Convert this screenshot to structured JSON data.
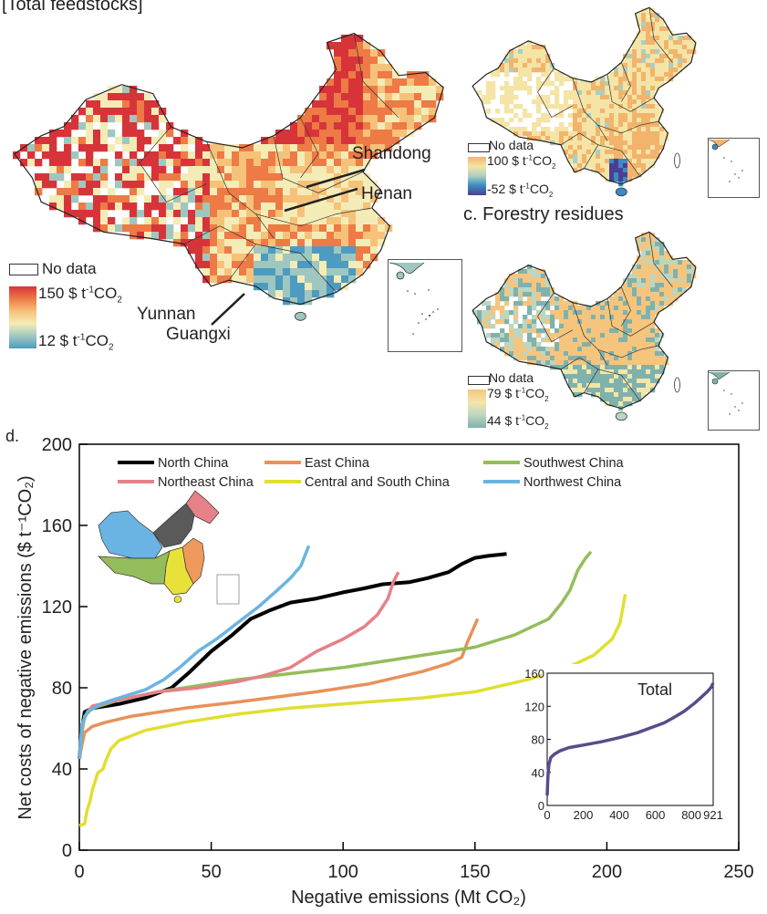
{
  "panel_a": {
    "title": "[Total feedstocks]",
    "legend": {
      "nodata_label": "No data",
      "max_label": "150 $ t",
      "max_sup": "-1",
      "max_unit": "CO",
      "max_sub": "2",
      "min_label": "12 $ t",
      "min_sup": "-1",
      "min_unit": "CO",
      "min_sub": "2",
      "colors": [
        "#d7343a",
        "#ee7a45",
        "#f6c27a",
        "#f4ecb6",
        "#9fc7bf",
        "#4d9bc1"
      ]
    },
    "annotations": [
      "Shandong",
      "Henan",
      "Yunnan",
      "Guangxi"
    ]
  },
  "panel_b": {
    "legend": {
      "nodata_label": "No data",
      "max_label": "100 $ t",
      "max_sup": "-1",
      "max_unit": "CO",
      "max_sub": "2",
      "min_label": "-52 $ t",
      "min_sup": "-1",
      "min_unit": "CO",
      "min_sub": "2",
      "colors": [
        "#f2b46c",
        "#f4e4a6",
        "#a9cfc4",
        "#3c8ac0",
        "#4b3f95"
      ]
    }
  },
  "panel_c": {
    "title": "c. Forestry residues",
    "legend": {
      "nodata_label": "No data",
      "max_label": "79 $ t",
      "max_sup": "-1",
      "max_unit": "CO",
      "max_sub": "2",
      "min_label": "44 $ t",
      "min_sup": "-1",
      "min_unit": "CO",
      "min_sub": "2",
      "colors": [
        "#f5c57d",
        "#f2e6a8",
        "#bcd6c1",
        "#80b2ad"
      ]
    }
  },
  "chart_data": [
    {
      "type": "line",
      "panel_label": "d.",
      "title": "",
      "xlabel": "Negative emissions (Mt CO₂)",
      "ylabel": "Net costs of negative emissions ($ t⁻¹CO₂)",
      "xlim": [
        0,
        250
      ],
      "ylim": [
        0,
        200
      ],
      "xticks": [
        0,
        50,
        100,
        150,
        200,
        250
      ],
      "yticks": [
        0,
        40,
        80,
        120,
        160,
        200
      ],
      "grid": false,
      "legend_position": "top",
      "series": [
        {
          "name": "North China",
          "color": "#000000",
          "x": [
            0,
            1,
            2,
            5,
            15,
            25,
            35,
            42,
            50,
            58,
            65,
            72,
            80,
            90,
            100,
            108,
            115,
            125,
            132,
            140,
            145,
            150,
            155,
            162
          ],
          "y": [
            45,
            60,
            68,
            70,
            72,
            75,
            80,
            88,
            98,
            106,
            114,
            118,
            122,
            124,
            127,
            129,
            131,
            132,
            134,
            137,
            141,
            144,
            145,
            146
          ]
        },
        {
          "name": "East China",
          "color": "#e8915a",
          "x": [
            0,
            1,
            2,
            5,
            10,
            20,
            40,
            60,
            90,
            110,
            130,
            140,
            145,
            147,
            149,
            151
          ],
          "y": [
            45,
            52,
            58,
            61,
            63,
            66,
            70,
            73,
            78,
            82,
            88,
            92,
            95,
            102,
            108,
            114
          ]
        },
        {
          "name": "Southwest China",
          "color": "#93bd5a",
          "x": [
            0,
            1,
            2,
            5,
            15,
            30,
            60,
            100,
            130,
            150,
            165,
            178,
            183,
            186,
            189,
            192,
            194
          ],
          "y": [
            45,
            58,
            66,
            70,
            74,
            78,
            84,
            90,
            96,
            100,
            106,
            114,
            122,
            128,
            138,
            144,
            147
          ]
        },
        {
          "name": "Northeast China",
          "color": "#e58188",
          "x": [
            0,
            1,
            3,
            5,
            15,
            30,
            45,
            60,
            70,
            80,
            90,
            100,
            108,
            113,
            117,
            119,
            121
          ],
          "y": [
            45,
            62,
            68,
            71,
            74,
            78,
            80,
            83,
            86,
            90,
            98,
            104,
            110,
            116,
            124,
            132,
            137
          ]
        },
        {
          "name": "Central and South China",
          "color": "#e0df2e",
          "x": [
            0,
            2,
            3,
            4,
            5,
            7,
            9,
            10,
            12,
            15,
            25,
            40,
            60,
            80,
            100,
            130,
            150,
            170,
            185,
            195,
            202,
            205,
            207
          ],
          "y": [
            12,
            13,
            20,
            24,
            30,
            38,
            40,
            44,
            50,
            54,
            59,
            63,
            67,
            70,
            72,
            75,
            78,
            84,
            90,
            96,
            104,
            112,
            126
          ]
        },
        {
          "name": "Northwest China",
          "color": "#6ab4e3",
          "x": [
            0,
            1,
            3,
            8,
            15,
            25,
            32,
            38,
            45,
            52,
            60,
            68,
            75,
            80,
            84,
            87
          ],
          "y": [
            45,
            62,
            68,
            72,
            75,
            79,
            84,
            90,
            98,
            104,
            112,
            120,
            128,
            134,
            140,
            150
          ]
        }
      ]
    },
    {
      "type": "line",
      "title": "Total",
      "xlabel": "",
      "ylabel": "",
      "xlim": [
        0,
        921
      ],
      "ylim": [
        0,
        160
      ],
      "xticks": [
        0,
        200,
        400,
        600,
        800,
        921
      ],
      "yticks": [
        0,
        40,
        80,
        120,
        160
      ],
      "grid": false,
      "series": [
        {
          "name": "Total",
          "color": "#5b4b8a",
          "x": [
            0,
            3,
            6,
            10,
            20,
            40,
            70,
            120,
            200,
            300,
            400,
            500,
            600,
            650,
            700,
            760,
            820,
            860,
            890,
            910,
            921
          ],
          "y": [
            12,
            30,
            42,
            50,
            58,
            62,
            66,
            70,
            73,
            77,
            82,
            88,
            96,
            100,
            106,
            114,
            124,
            132,
            138,
            143,
            148
          ]
        }
      ]
    }
  ],
  "inset_map": {
    "regions": [
      {
        "name": "Northwest China",
        "color": "#6ab4e3"
      },
      {
        "name": "North China",
        "color": "#5a5a5a"
      },
      {
        "name": "Northeast China",
        "color": "#e58188"
      },
      {
        "name": "East China",
        "color": "#ef9a5c"
      },
      {
        "name": "Central and South China",
        "color": "#e8e13a"
      },
      {
        "name": "Southwest China",
        "color": "#93bd5a"
      }
    ]
  }
}
